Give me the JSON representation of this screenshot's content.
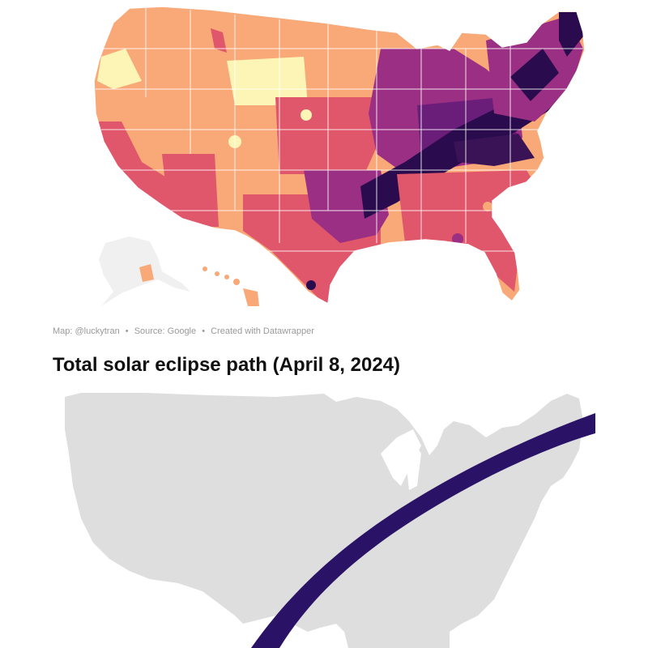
{
  "top_map": {
    "legend_colors": {
      "lowest": "#fcf5b5",
      "low": "#f9a877",
      "mid": "#e0566a",
      "high": "#9b2f83",
      "higher": "#6b1d7a",
      "highest": "#2a0b4d"
    },
    "inset_colors": {
      "alaska": "#f0f0f0",
      "hawaii": "#f9a877"
    },
    "credit": {
      "map": "Map: @luckytran",
      "source": "Source: Google",
      "tool": "Created with Datawrapper",
      "separator": "•"
    }
  },
  "bottom_map": {
    "title": "Total solar eclipse path (April 8, 2024)",
    "land_color": "#dedede",
    "path_color": "#2a1266"
  }
}
